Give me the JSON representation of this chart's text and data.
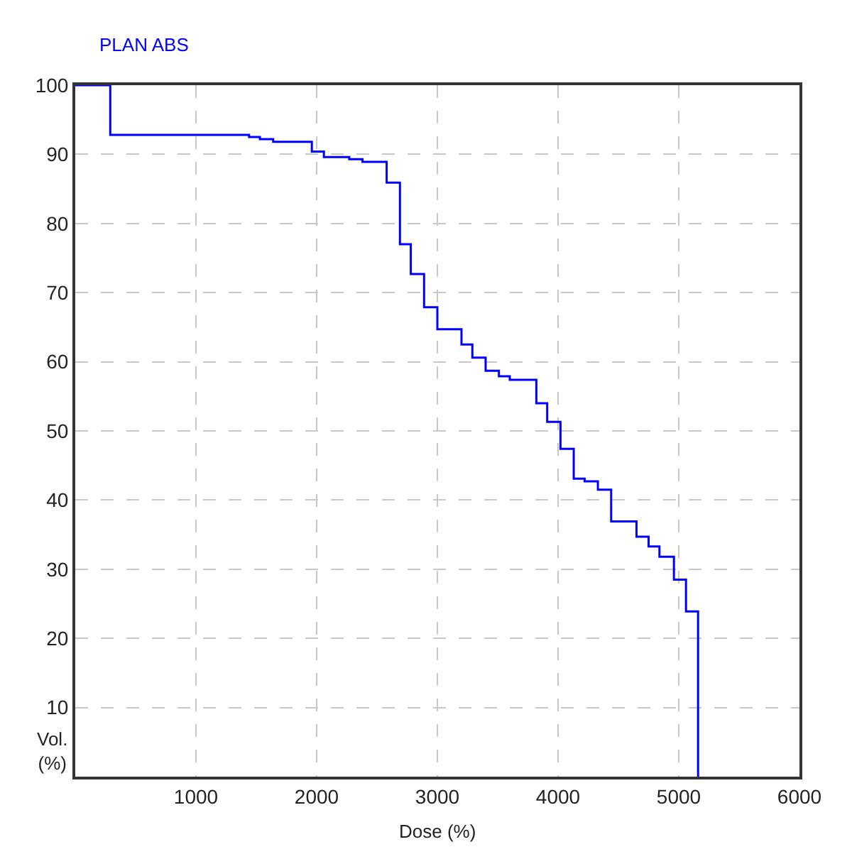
{
  "chart_data": {
    "type": "step",
    "title": "PLAN ABS",
    "xlabel": "Dose (%)",
    "ylabel": "Vol.\n(%)",
    "series": [
      {
        "color": "#0000ff",
        "x": [
          0,
          290,
          1440,
          1530,
          1640,
          1960,
          2060,
          2270,
          2380,
          2580,
          2690,
          2780,
          2890,
          3000,
          3200,
          3290,
          3400,
          3510,
          3600,
          3820,
          3910,
          4020,
          4130,
          4220,
          4330,
          4440,
          4650,
          4750,
          4840,
          4960,
          5060,
          5160
        ],
        "values": [
          100,
          92.8,
          92.5,
          92.2,
          91.8,
          90.4,
          89.6,
          89.3,
          88.9,
          85.9,
          77.0,
          72.7,
          67.9,
          64.7,
          62.5,
          60.6,
          58.7,
          57.9,
          57.4,
          54.0,
          51.3,
          47.4,
          43.1,
          42.7,
          41.5,
          36.9,
          34.7,
          33.3,
          31.8,
          28.5,
          23.9,
          0
        ]
      }
    ],
    "xlim": [
      0,
      6000
    ],
    "xticks": [
      1000,
      2000,
      3000,
      4000,
      5000,
      6000
    ],
    "ylim": [
      0,
      100
    ],
    "yticks": [
      10,
      20,
      30,
      40,
      50,
      60,
      70,
      80,
      90,
      100
    ],
    "grid": true,
    "line_style": "solid",
    "marker": "none"
  }
}
